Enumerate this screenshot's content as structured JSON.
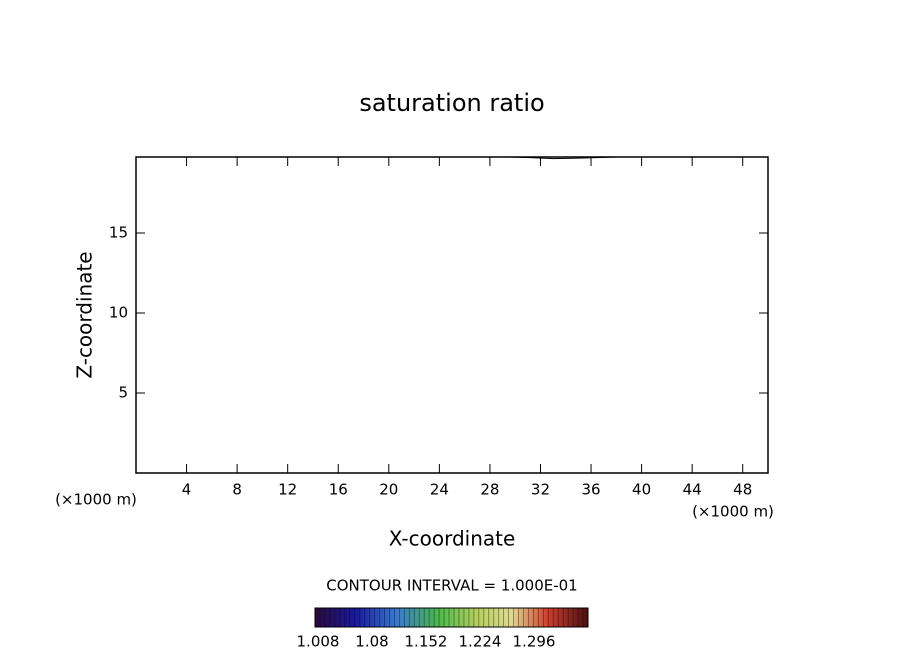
{
  "chart_data": {
    "type": "contour",
    "title": "saturation ratio",
    "xlabel": "X-coordinate",
    "ylabel": "Z-coordinate",
    "xunit": "(×1000 m)",
    "annotation": "CONTOUR INTERVAL = 1.000E-01",
    "xlim": [
      0,
      50
    ],
    "ylim": [
      0,
      19.75
    ],
    "xticks": [
      4,
      8,
      12,
      16,
      20,
      24,
      28,
      32,
      36,
      40,
      44,
      48
    ],
    "yticks": [
      5,
      10,
      15
    ],
    "series": [
      {
        "color": "#000000",
        "x": [
          29.5,
          31,
          33,
          35,
          37,
          38
        ],
        "values": [
          19.75,
          19.72,
          19.65,
          19.68,
          19.73,
          19.75
        ]
      }
    ],
    "colorbar": {
      "lim": [
        1.004,
        1.368
      ],
      "ticks": [
        1.008,
        1.08,
        1.152,
        1.224,
        1.296
      ]
    }
  }
}
